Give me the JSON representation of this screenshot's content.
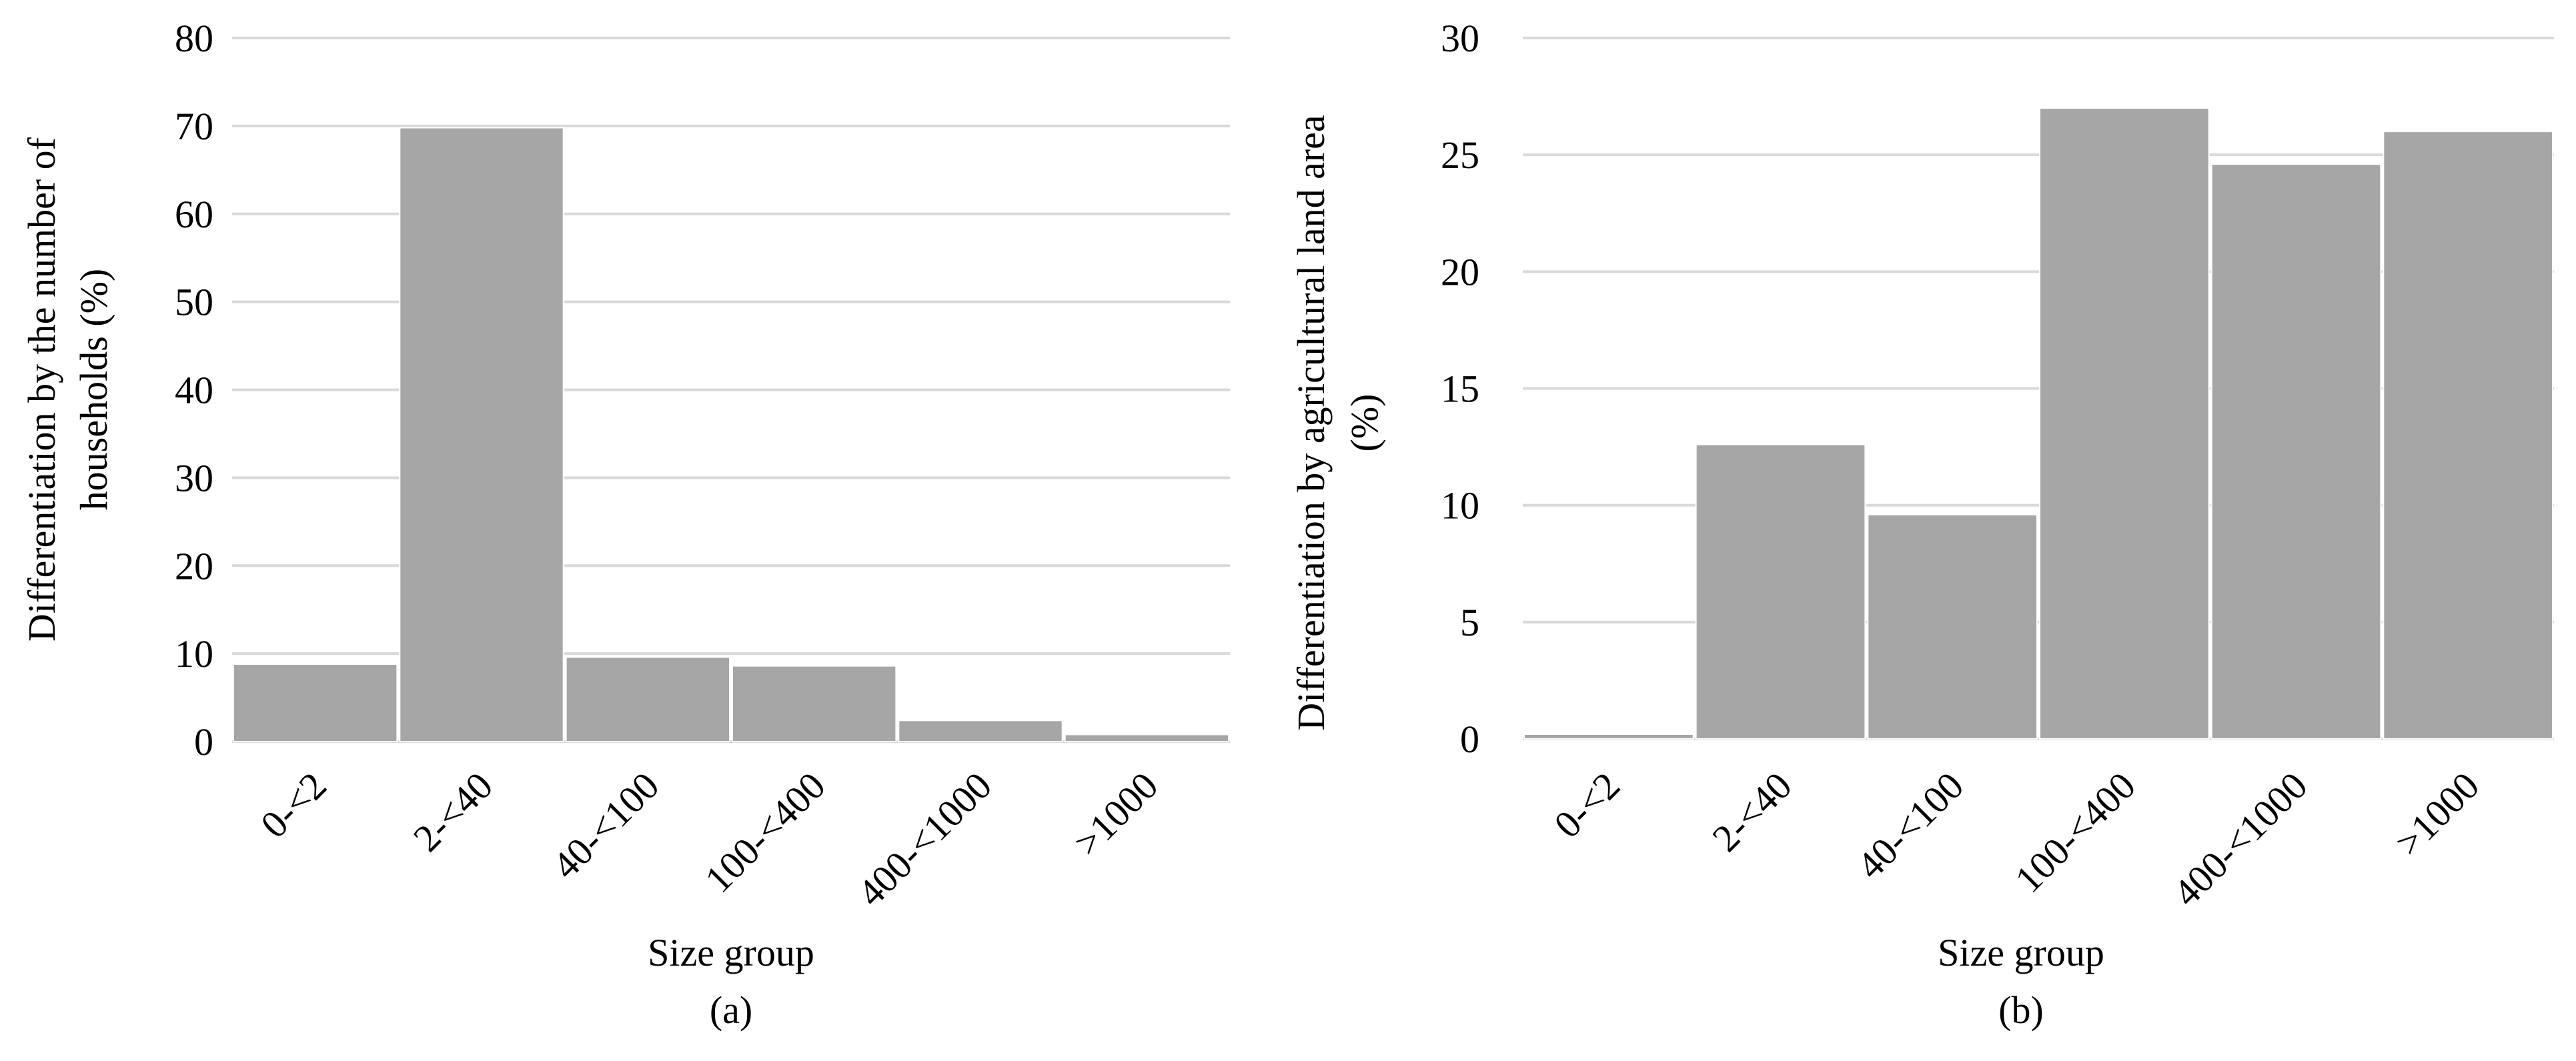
{
  "colors": {
    "bar_fill": "#a6a6a6",
    "bar_edge": "#ffffff",
    "gridline": "#d9d9d9",
    "text": "#000000"
  },
  "chart_data": [
    {
      "type": "bar",
      "panel_label": "(a)",
      "categories": [
        "0-<2",
        "2-<40",
        "40-<100",
        "100-<400",
        "400-<1000",
        ">1000"
      ],
      "values": [
        8.8,
        69.8,
        9.6,
        8.6,
        2.4,
        0.8
      ],
      "xlabel": "Size group",
      "ylabel": [
        "Differentiation by the number of",
        "households (%)"
      ],
      "ylim": [
        0,
        80
      ],
      "yticks": [
        0,
        10,
        20,
        30,
        40,
        50,
        60,
        70,
        80
      ],
      "grid": true
    },
    {
      "type": "bar",
      "panel_label": "(b)",
      "categories": [
        "0-<2",
        "2-<40",
        "40-<100",
        "100-<400",
        "400-<1000",
        ">1000"
      ],
      "values": [
        0.2,
        12.6,
        9.6,
        27.0,
        24.6,
        26.0
      ],
      "xlabel": "Size group",
      "ylabel": [
        "Differentiation by agricultural land area",
        "(%)"
      ],
      "ylim": [
        0,
        30
      ],
      "yticks": [
        0,
        5,
        10,
        15,
        20,
        25,
        30
      ],
      "grid": true
    }
  ]
}
